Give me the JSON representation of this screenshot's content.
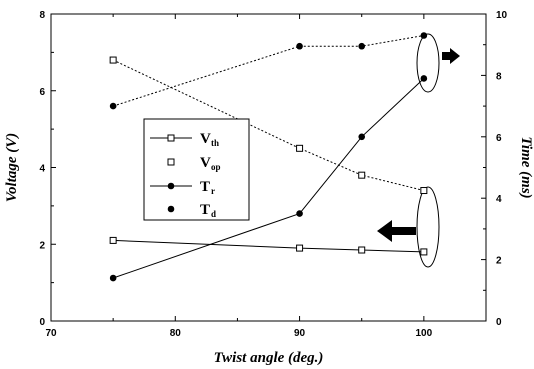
{
  "chart_data": {
    "type": "line",
    "xlabel": "Twist angle (deg.)",
    "ylabel_left": "Voltage (V)",
    "ylabel_right": "Time (ms)",
    "xlim": [
      70,
      105
    ],
    "ylim_left": [
      0,
      8
    ],
    "ylim_right": [
      0,
      10
    ],
    "x_ticks": [
      "70",
      "80",
      "90",
      "100"
    ],
    "y_left_ticks": [
      "0",
      "2",
      "4",
      "6",
      "8"
    ],
    "y_right_ticks": [
      "0",
      "2",
      "4",
      "6",
      "8",
      "10"
    ],
    "grid": false,
    "legend_position": "center-left",
    "series": [
      {
        "name": "V",
        "subscript": "th",
        "axis": "left",
        "marker": "open-square",
        "line": "solid",
        "x": [
          75,
          90,
          95,
          100
        ],
        "values": [
          2.1,
          1.9,
          1.85,
          1.8
        ]
      },
      {
        "name": "V",
        "subscript": "op",
        "axis": "left",
        "marker": "open-square",
        "line": "dotted",
        "x": [
          75,
          90,
          95,
          100
        ],
        "values": [
          6.8,
          4.5,
          3.8,
          3.4
        ]
      },
      {
        "name": "T",
        "subscript": "r",
        "axis": "right",
        "marker": "filled-circle",
        "line": "solid",
        "x": [
          75,
          90,
          95,
          100
        ],
        "values": [
          1.4,
          3.5,
          6.0,
          7.9
        ]
      },
      {
        "name": "T",
        "subscript": "d",
        "axis": "right",
        "marker": "filled-circle",
        "line": "dotted",
        "x": [
          75,
          90,
          95,
          100
        ],
        "values": [
          7.0,
          8.95,
          8.95,
          9.3
        ]
      }
    ]
  }
}
